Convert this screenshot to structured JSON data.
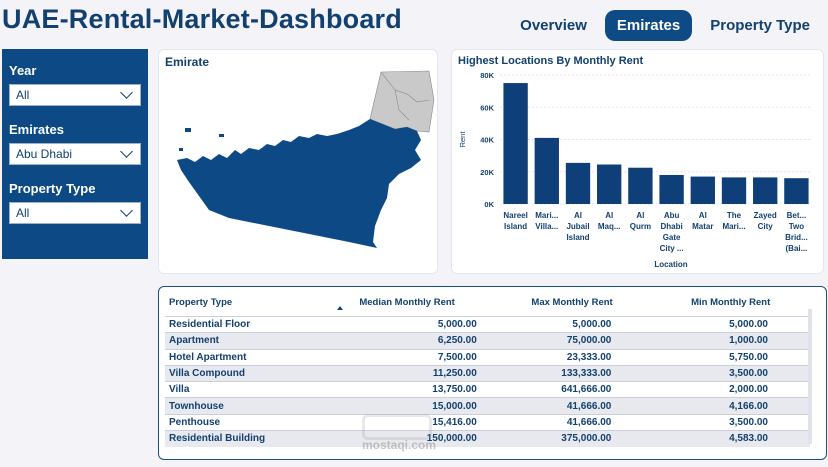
{
  "header": {
    "title": "UAE-Rental-Market-Dashboard",
    "nav": [
      {
        "label": "Overview"
      },
      {
        "label": "Emirates"
      },
      {
        "label": "Property Type"
      }
    ]
  },
  "filters": {
    "year": {
      "label": "Year",
      "value": "All"
    },
    "emirates": {
      "label": "Emirates",
      "value": "Abu Dhabi"
    },
    "property_type": {
      "label": "Property Type",
      "value": "All"
    }
  },
  "map": {
    "title": "Emirate"
  },
  "colors": {
    "accent": "#0d4a85",
    "bar": "#0e3f78",
    "map_highlight": "#0d4a85",
    "map_other": "#c9c9c9"
  },
  "chart_data": {
    "type": "bar",
    "title": "Highest Locations By Monthly Rent",
    "xlabel": "Location",
    "ylabel": "Rent",
    "ylim": [
      0,
      80000
    ],
    "yticks": [
      "0K",
      "20K",
      "40K",
      "60K",
      "80K"
    ],
    "yticks_values": [
      0,
      20000,
      40000,
      60000,
      80000
    ],
    "categories": [
      [
        "Nareel",
        "Island"
      ],
      [
        "Mari...",
        "Villa..."
      ],
      [
        "Al",
        "Jubail",
        "Island"
      ],
      [
        "Al",
        "Maq..."
      ],
      [
        "Al",
        "Qurm"
      ],
      [
        "Abu",
        "Dhabi",
        "Gate",
        "City ..."
      ],
      [
        "Al",
        "Matar"
      ],
      [
        "The",
        "Mari..."
      ],
      [
        "Zayed",
        "City"
      ],
      [
        "Bet...",
        "Two",
        "Brid...",
        "(Bai..."
      ]
    ],
    "values": [
      75000,
      41000,
      25500,
      24500,
      22500,
      18000,
      17000,
      16500,
      16500,
      16000
    ]
  },
  "table": {
    "columns": [
      "Property Type",
      "Median Monthly Rent",
      "Max Monthly Rent",
      "Min Monthly Rent"
    ],
    "rows": [
      [
        "Residential Floor",
        "5,000.00",
        "5,000.00",
        "5,000.00"
      ],
      [
        "Apartment",
        "6,250.00",
        "75,000.00",
        "1,000.00"
      ],
      [
        "Hotel Apartment",
        "7,500.00",
        "23,333.00",
        "5,750.00"
      ],
      [
        "Villa Compound",
        "11,250.00",
        "133,333.00",
        "3,500.00"
      ],
      [
        "Villa",
        "13,750.00",
        "641,666.00",
        "2,000.00"
      ],
      [
        "Townhouse",
        "15,000.00",
        "41,666.00",
        "4,166.00"
      ],
      [
        "Penthouse",
        "15,416.00",
        "41,666.00",
        "3,500.00"
      ],
      [
        "Residential Building",
        "150,000.00",
        "375,000.00",
        "4,583.00"
      ]
    ]
  },
  "watermark": {
    "text": "mostaqi.com"
  }
}
